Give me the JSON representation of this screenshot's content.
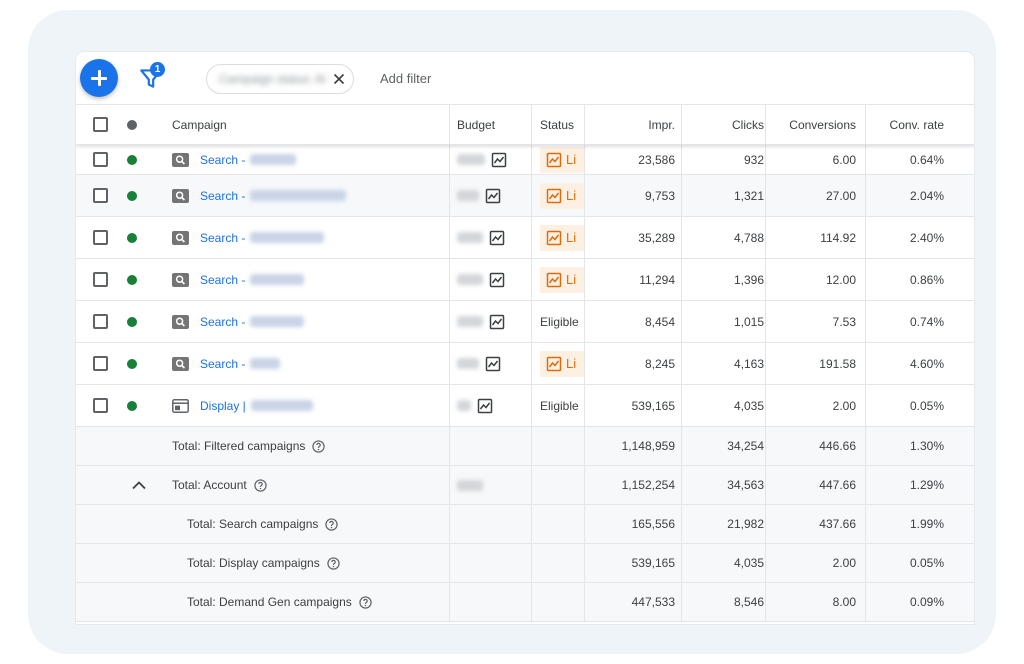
{
  "toolbar": {
    "filter_badge": "1",
    "chip_text": "Campaign status: All",
    "add_filter": "Add filter"
  },
  "columns": {
    "campaign": "Campaign",
    "budget": "Budget",
    "status": "Status",
    "impr": "Impr.",
    "clicks": "Clicks",
    "conversions": "Conversions",
    "conv_rate": "Conv. rate"
  },
  "rows": [
    {
      "type": "Search",
      "name": "Search -",
      "status": "Li",
      "impr": "23,586",
      "clicks": "932",
      "conversions": "6.00",
      "conv_rate": "0.64%"
    },
    {
      "type": "Search",
      "name": "Search -",
      "status": "Li",
      "impr": "9,753",
      "clicks": "1,321",
      "conversions": "27.00",
      "conv_rate": "2.04%"
    },
    {
      "type": "Search",
      "name": "Search -",
      "status": "Li",
      "impr": "35,289",
      "clicks": "4,788",
      "conversions": "114.92",
      "conv_rate": "2.40%"
    },
    {
      "type": "Search",
      "name": "Search -",
      "status": "Li",
      "impr": "11,294",
      "clicks": "1,396",
      "conversions": "12.00",
      "conv_rate": "0.86%"
    },
    {
      "type": "Search",
      "name": "Search -",
      "status": "Eligible",
      "impr": "8,454",
      "clicks": "1,015",
      "conversions": "7.53",
      "conv_rate": "0.74%"
    },
    {
      "type": "Search",
      "name": "Search -",
      "status": "Li",
      "impr": "8,245",
      "clicks": "4,163",
      "conversions": "191.58",
      "conv_rate": "4.60%"
    },
    {
      "type": "Display",
      "name": "Display |",
      "status": "Eligible",
      "impr": "539,165",
      "clicks": "4,035",
      "conversions": "2.00",
      "conv_rate": "0.05%"
    }
  ],
  "totals": [
    {
      "label": "Total: Filtered campaigns",
      "impr": "1,148,959",
      "clicks": "34,254",
      "conversions": "446.66",
      "conv_rate": "1.30%"
    },
    {
      "label": "Total: Account",
      "impr": "1,152,254",
      "clicks": "34,563",
      "conversions": "447.66",
      "conv_rate": "1.29%"
    },
    {
      "label": "Total: Search campaigns",
      "impr": "165,556",
      "clicks": "21,982",
      "conversions": "437.66",
      "conv_rate": "1.99%"
    },
    {
      "label": "Total: Display campaigns",
      "impr": "539,165",
      "clicks": "4,035",
      "conversions": "2.00",
      "conv_rate": "0.05%"
    },
    {
      "label": "Total: Demand Gen campaigns",
      "impr": "447,533",
      "clicks": "8,546",
      "conversions": "8.00",
      "conv_rate": "0.09%"
    }
  ],
  "colors": {
    "accent": "#1a73e8",
    "enabled": "#188038",
    "limited_bg": "#feefe3",
    "limited_fg": "#d56e0c"
  },
  "icons": [
    "add-icon",
    "filter-icon",
    "close-icon",
    "search-campaign-icon",
    "display-campaign-icon",
    "trend-chart-icon",
    "help-icon",
    "chevron-up-icon"
  ]
}
